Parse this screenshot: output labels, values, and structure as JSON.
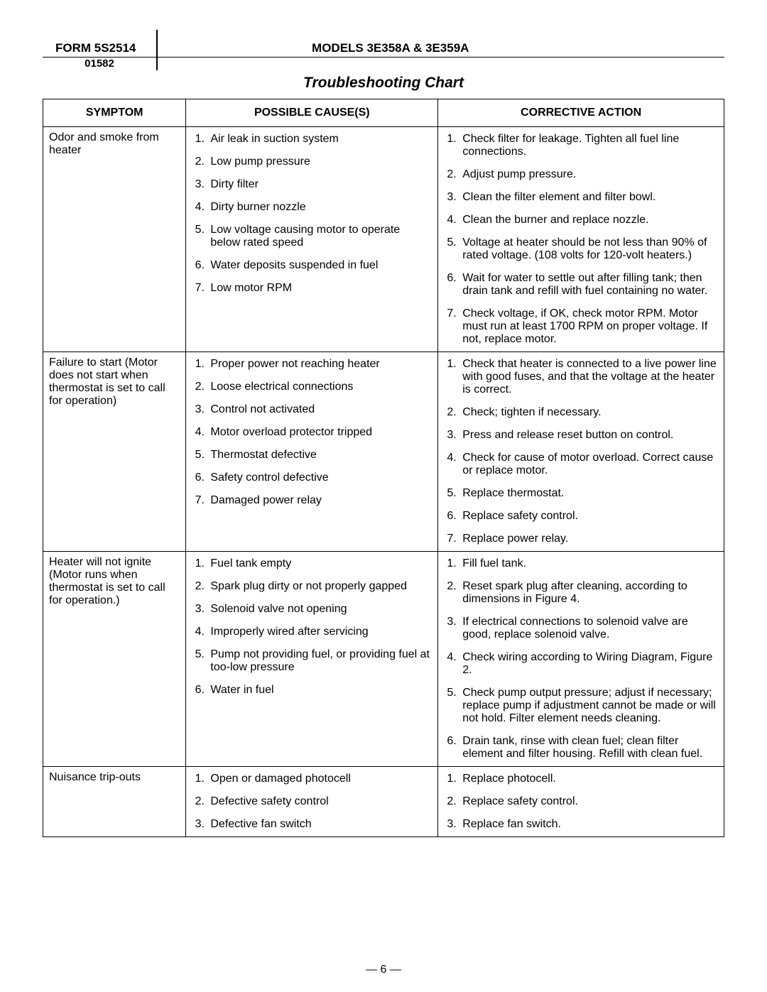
{
  "header": {
    "form": "FORM 5S2514",
    "models": "MODELS 3E358A & 3E359A",
    "date_code": "01582"
  },
  "chart_title": "Troubleshooting Chart",
  "columns": {
    "symptom": "SYMPTOM",
    "cause": "POSSIBLE CAUSE(S)",
    "action": "CORRECTIVE ACTION"
  },
  "rows": [
    {
      "symptom": "Odor and smoke from heater",
      "causes": [
        "Air leak in suction system",
        "Low pump pressure",
        "Dirty filter",
        "Dirty burner nozzle",
        "Low voltage causing motor to operate below rated speed",
        "Water deposits suspended in fuel",
        "Low motor RPM"
      ],
      "actions": [
        "Check filter for leakage. Tighten all fuel line connections.",
        "Adjust pump pressure.",
        "Clean the filter element and filter bowl.",
        "Clean the burner and replace nozzle.",
        "Voltage at heater should be not less than 90% of rated voltage. (108 volts for 120-volt heaters.)",
        "Wait for water to settle out after filling tank; then drain tank and refill with fuel containing no water.",
        "Check voltage, if OK, check motor RPM. Motor must run at least 1700 RPM on proper voltage. If not, replace motor."
      ]
    },
    {
      "symptom": "Failure to start (Motor does not start when thermostat is set to call for operation)",
      "causes": [
        "Proper power not reaching heater",
        "Loose electrical connections",
        "Control not activated",
        "Motor overload protector tripped",
        "Thermostat defective",
        "Safety control defective",
        "Damaged power relay"
      ],
      "actions": [
        "Check that heater is connected to a live power line with good fuses, and that the voltage at the heater is correct.",
        "Check; tighten if necessary.",
        "Press and release reset button on control.",
        "Check for cause of motor overload. Correct cause or replace motor.",
        "Replace thermostat.",
        "Replace safety control.",
        "Replace power relay."
      ]
    },
    {
      "symptom": "Heater will not ignite (Motor runs when thermostat is set to call for operation.)",
      "causes": [
        "Fuel tank empty",
        "Spark plug dirty or not properly gapped",
        "Solenoid valve not opening",
        "Improperly wired after servicing",
        "Pump not providing fuel, or providing fuel at too-low pressure",
        "Water in fuel"
      ],
      "actions": [
        "Fill fuel tank.",
        "Reset spark plug after cleaning, according to dimensions in Figure 4.",
        "If electrical connections to solenoid valve are good, replace solenoid valve.",
        "Check wiring according to Wiring Diagram, Figure 2.",
        "Check pump output pressure; adjust if necessary; replace pump if adjustment cannot be made or will not hold. Filter element needs cleaning.",
        "Drain tank, rinse with clean fuel; clean filter element and filter housing. Refill with clean fuel."
      ]
    },
    {
      "symptom": "Nuisance trip-outs",
      "causes": [
        "Open or damaged photocell",
        "Defective safety control",
        "Defective fan switch"
      ],
      "actions": [
        "Replace photocell.",
        "Replace safety control.",
        "Replace fan switch."
      ]
    }
  ],
  "page_number": "— 6 —"
}
